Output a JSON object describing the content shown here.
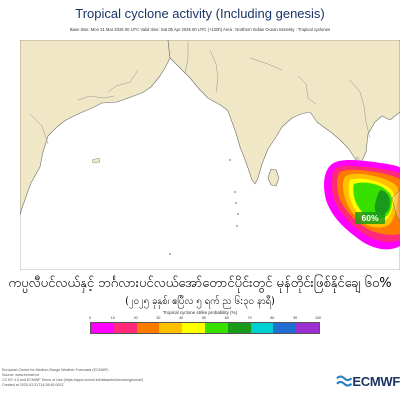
{
  "header": {
    "title": "Tropical cyclone activity (Including genesis)",
    "subtitle": "Base time: Mon 31 Mar 2025 00 UTC Valid time: Sat 05 Apr 2025 00 UTC (+120h) Area : Northern Indian Ocean Intensity : Tropical cyclones"
  },
  "map": {
    "probability_label": "60%",
    "colors": {
      "land": "#efe7c5",
      "sea": "#ffffff",
      "border": "#8a8a8a",
      "coast": "#6e6e6e"
    }
  },
  "caption": {
    "line1": "ကပ္ပလီပင်လယ်နှင့် ဘင်္ဂလားပင်လယ်အော်တောင်ပိုင်းတွင် မုန်တိုင်းဖြစ်နိုင်ချေ ၆၀%",
    "line2": "(၂၀၂၅ ခုနှစ်၊ ဧပြီလ ၅ ရက် ည ၆:၃၀ နာရီ)"
  },
  "legend": {
    "title": "Tropical cyclone strike probability (%)",
    "ticks": [
      "0",
      "10",
      "20",
      "30",
      "40",
      "50",
      "60",
      "70",
      "80",
      "90",
      "100"
    ],
    "colors": [
      "#ff00ff",
      "#ff2a7a",
      "#ff7a00",
      "#ffc000",
      "#ffff00",
      "#38e000",
      "#1a9a1a",
      "#00d0d0",
      "#1f6fd0",
      "#9b2fcf"
    ]
  },
  "footer": {
    "lines": [
      "European Centre for Medium-Range Weather Forecasts (ECMWF)",
      "Source: www.ecmwf.int",
      "CC BY 4.0 and ECMWF Terms of Use (https://apps.ecmwf.int/datasets/licences/general/)",
      "Created at 2025-03-31T14:28:45.000Z"
    ]
  },
  "logo": {
    "text": "ECMWF",
    "icon": "ecmwf-logo-icon"
  }
}
